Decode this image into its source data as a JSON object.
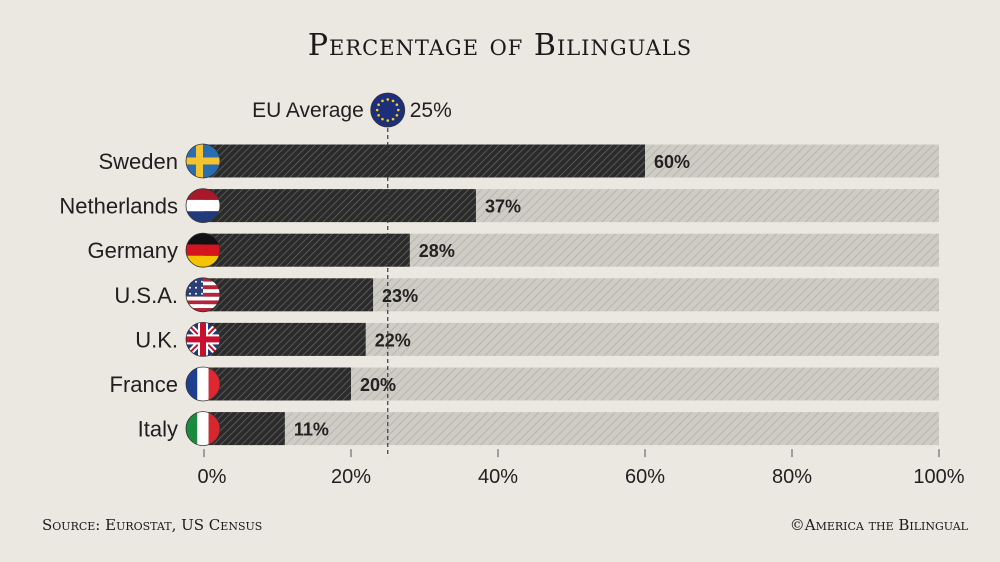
{
  "page": {
    "title": "Percentage of Bilinguals",
    "source": "Source: Eurostat, US Census",
    "credit": "©America the Bilingual"
  },
  "chart_data": {
    "type": "bar",
    "orientation": "horizontal",
    "title": "Percentage of Bilinguals",
    "categories": [
      "Sweden",
      "Netherlands",
      "Germany",
      "U.S.A.",
      "U.K.",
      "France",
      "Italy"
    ],
    "values": [
      60,
      37,
      28,
      23,
      22,
      20,
      11
    ],
    "value_labels": [
      "60%",
      "37%",
      "28%",
      "23%",
      "22%",
      "20%",
      "11%"
    ],
    "flag_icons": [
      "sweden-flag-icon",
      "netherlands-flag-icon",
      "germany-flag-icon",
      "usa-flag-icon",
      "uk-flag-icon",
      "france-flag-icon",
      "italy-flag-icon"
    ],
    "xlim": [
      0,
      100
    ],
    "x_ticks": [
      0,
      20,
      40,
      60,
      80,
      100
    ],
    "x_tick_labels": [
      "0%",
      "20%",
      "40%",
      "60%",
      "80%",
      "100%"
    ],
    "xlabel": "",
    "ylabel": "",
    "grid": false,
    "reference_line": {
      "label": "EU Average",
      "value": 25,
      "value_label": "25%",
      "icon": "eu-flag-icon",
      "style": "dashed"
    },
    "colors": {
      "background": "#ebe7e1",
      "bar_fill": "#2b2b2b",
      "bar_track": "#cfcbc5"
    }
  }
}
